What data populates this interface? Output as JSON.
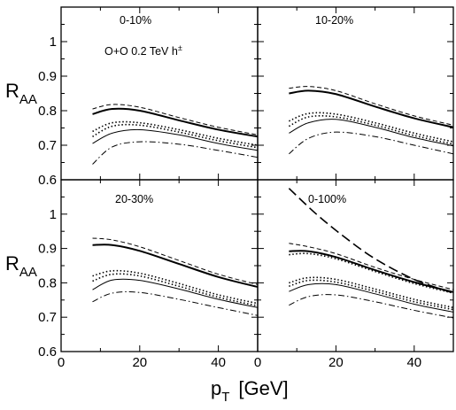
{
  "chart_data": {
    "type": "line",
    "xlabel": {
      "main": "p",
      "sub": "T",
      "unit": "[GeV]"
    },
    "ylabel": {
      "main": "R",
      "sub": "AA"
    },
    "xlim": [
      0,
      50
    ],
    "ylim": [
      0.6,
      1.1
    ],
    "x_ticks": [
      "0",
      "20",
      "40"
    ],
    "y_ticks_top": [
      "0.6",
      "0.7",
      "0.8",
      "0.9",
      "1"
    ],
    "y_ticks_bottom": [
      "0.6",
      "0.7",
      "0.8",
      "0.9",
      "1"
    ],
    "grid": false,
    "system_label": "O+O 0.2 TeV  h",
    "system_sup": "±",
    "panels": [
      {
        "label": "0-10%",
        "series": [
          {
            "style": "dashed",
            "x": [
              8,
              13,
              20,
              30,
              40,
              50
            ],
            "y": [
              0.805,
              0.818,
              0.81,
              0.78,
              0.752,
              0.73
            ]
          },
          {
            "style": "solid-thick",
            "x": [
              8,
              13,
              20,
              30,
              40,
              50
            ],
            "y": [
              0.79,
              0.805,
              0.8,
              0.772,
              0.745,
              0.725
            ]
          },
          {
            "style": "dotted",
            "x": [
              8,
              13,
              20,
              30,
              40,
              50
            ],
            "y": [
              0.74,
              0.765,
              0.765,
              0.745,
              0.72,
              0.7
            ]
          },
          {
            "style": "dotted",
            "x": [
              8,
              13,
              20,
              30,
              40,
              50
            ],
            "y": [
              0.725,
              0.755,
              0.758,
              0.738,
              0.713,
              0.693
            ]
          },
          {
            "style": "solid",
            "x": [
              8,
              13,
              20,
              30,
              40,
              50
            ],
            "y": [
              0.705,
              0.735,
              0.745,
              0.73,
              0.705,
              0.685
            ]
          },
          {
            "style": "dashdot",
            "x": [
              8,
              13,
              20,
              30,
              40,
              50
            ],
            "y": [
              0.645,
              0.695,
              0.71,
              0.703,
              0.685,
              0.665
            ]
          }
        ]
      },
      {
        "label": "10-20%",
        "series": [
          {
            "style": "dashed",
            "x": [
              8,
              13,
              20,
              30,
              40,
              50
            ],
            "y": [
              0.865,
              0.87,
              0.858,
              0.82,
              0.785,
              0.758
            ]
          },
          {
            "style": "solid-thick",
            "x": [
              8,
              13,
              20,
              30,
              40,
              50
            ],
            "y": [
              0.85,
              0.858,
              0.848,
              0.812,
              0.778,
              0.752
            ]
          },
          {
            "style": "dotted",
            "x": [
              8,
              13,
              20,
              30,
              40,
              50
            ],
            "y": [
              0.77,
              0.792,
              0.79,
              0.765,
              0.735,
              0.71
            ]
          },
          {
            "style": "dotted",
            "x": [
              8,
              13,
              20,
              30,
              40,
              50
            ],
            "y": [
              0.755,
              0.782,
              0.782,
              0.758,
              0.728,
              0.703
            ]
          },
          {
            "style": "solid",
            "x": [
              8,
              13,
              20,
              30,
              40,
              50
            ],
            "y": [
              0.735,
              0.765,
              0.775,
              0.752,
              0.722,
              0.698
            ]
          },
          {
            "style": "dashdot",
            "x": [
              8,
              13,
              20,
              30,
              40,
              50
            ],
            "y": [
              0.675,
              0.72,
              0.738,
              0.725,
              0.7,
              0.675
            ]
          }
        ]
      },
      {
        "label": "20-30%",
        "series": [
          {
            "style": "dashed",
            "x": [
              8,
              13,
              20,
              30,
              40,
              50
            ],
            "y": [
              0.93,
              0.925,
              0.905,
              0.865,
              0.825,
              0.795
            ]
          },
          {
            "style": "solid-thick",
            "x": [
              8,
              13,
              20,
              30,
              40,
              50
            ],
            "y": [
              0.91,
              0.91,
              0.893,
              0.855,
              0.817,
              0.788
            ]
          },
          {
            "style": "dotted",
            "x": [
              8,
              13,
              20,
              30,
              40,
              50
            ],
            "y": [
              0.82,
              0.835,
              0.828,
              0.798,
              0.765,
              0.74
            ]
          },
          {
            "style": "dotted",
            "x": [
              8,
              13,
              20,
              30,
              40,
              50
            ],
            "y": [
              0.805,
              0.825,
              0.82,
              0.79,
              0.758,
              0.733
            ]
          },
          {
            "style": "solid",
            "x": [
              8,
              13,
              20,
              30,
              40,
              50
            ],
            "y": [
              0.78,
              0.808,
              0.807,
              0.782,
              0.752,
              0.728
            ]
          },
          {
            "style": "dashdot",
            "x": [
              8,
              13,
              20,
              30,
              40,
              50
            ],
            "y": [
              0.745,
              0.77,
              0.772,
              0.752,
              0.728,
              0.705
            ]
          }
        ]
      },
      {
        "label": "0-100%",
        "series": [
          {
            "style": "dashed",
            "x": [
              8,
              13,
              20,
              30,
              40,
              50
            ],
            "y": [
              0.915,
              0.905,
              0.885,
              0.845,
              0.81,
              0.78
            ]
          },
          {
            "style": "solid-thick",
            "x": [
              8,
              13,
              20,
              30,
              40,
              50
            ],
            "y": [
              0.892,
              0.892,
              0.875,
              0.837,
              0.802,
              0.773
            ]
          },
          {
            "style": "dotted",
            "x": [
              8,
              13,
              20,
              30,
              40,
              50
            ],
            "y": [
              0.882,
              0.885,
              0.87,
              0.833,
              0.798,
              0.77
            ]
          },
          {
            "style": "dotted",
            "x": [
              8,
              13,
              20,
              30,
              40,
              50
            ],
            "y": [
              0.8,
              0.815,
              0.81,
              0.782,
              0.752,
              0.728
            ]
          },
          {
            "style": "dotted",
            "x": [
              8,
              13,
              20,
              30,
              40,
              50
            ],
            "y": [
              0.79,
              0.807,
              0.802,
              0.775,
              0.745,
              0.722
            ]
          },
          {
            "style": "solid",
            "x": [
              8,
              13,
              20,
              30,
              40,
              50
            ],
            "y": [
              0.775,
              0.795,
              0.795,
              0.768,
              0.738,
              0.715
            ]
          },
          {
            "style": "dashdot",
            "x": [
              8,
              13,
              20,
              30,
              40,
              50
            ],
            "y": [
              0.735,
              0.76,
              0.765,
              0.745,
              0.72,
              0.698
            ]
          },
          {
            "style": "longdash",
            "x": [
              8,
              15,
              22,
              30,
              40,
              50
            ],
            "y": [
              1.075,
              1.0,
              0.935,
              0.87,
              0.81,
              0.77
            ]
          }
        ]
      }
    ]
  }
}
